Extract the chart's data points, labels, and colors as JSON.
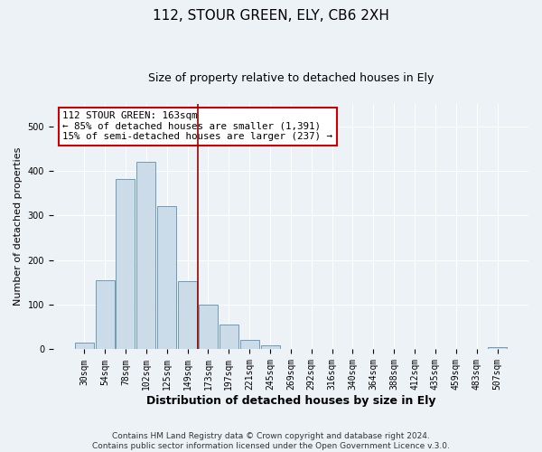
{
  "title": "112, STOUR GREEN, ELY, CB6 2XH",
  "subtitle": "Size of property relative to detached houses in Ely",
  "xlabel": "Distribution of detached houses by size in Ely",
  "ylabel": "Number of detached properties",
  "bin_labels": [
    "30sqm",
    "54sqm",
    "78sqm",
    "102sqm",
    "125sqm",
    "149sqm",
    "173sqm",
    "197sqm",
    "221sqm",
    "245sqm",
    "269sqm",
    "292sqm",
    "316sqm",
    "340sqm",
    "364sqm",
    "388sqm",
    "412sqm",
    "435sqm",
    "459sqm",
    "483sqm",
    "507sqm"
  ],
  "bar_heights": [
    15,
    155,
    382,
    420,
    322,
    153,
    100,
    55,
    22,
    10,
    0,
    0,
    0,
    0,
    0,
    0,
    0,
    0,
    0,
    0,
    5
  ],
  "bar_color": "#ccdbe8",
  "bar_edge_color": "#5a8fb0",
  "vline_color": "#990000",
  "annotation_text": "112 STOUR GREEN: 163sqm\n← 85% of detached houses are smaller (1,391)\n15% of semi-detached houses are larger (237) →",
  "annotation_box_color": "#ffffff",
  "annotation_box_edge": "#cc0000",
  "ylim": [
    0,
    550
  ],
  "footer": "Contains HM Land Registry data © Crown copyright and database right 2024.\nContains public sector information licensed under the Open Government Licence v.3.0.",
  "bg_color": "#edf2f7",
  "grid_color": "#ffffff",
  "title_fontsize": 11,
  "subtitle_fontsize": 9,
  "ylabel_fontsize": 8,
  "xlabel_fontsize": 9,
  "tick_fontsize": 7,
  "footer_fontsize": 6.5
}
